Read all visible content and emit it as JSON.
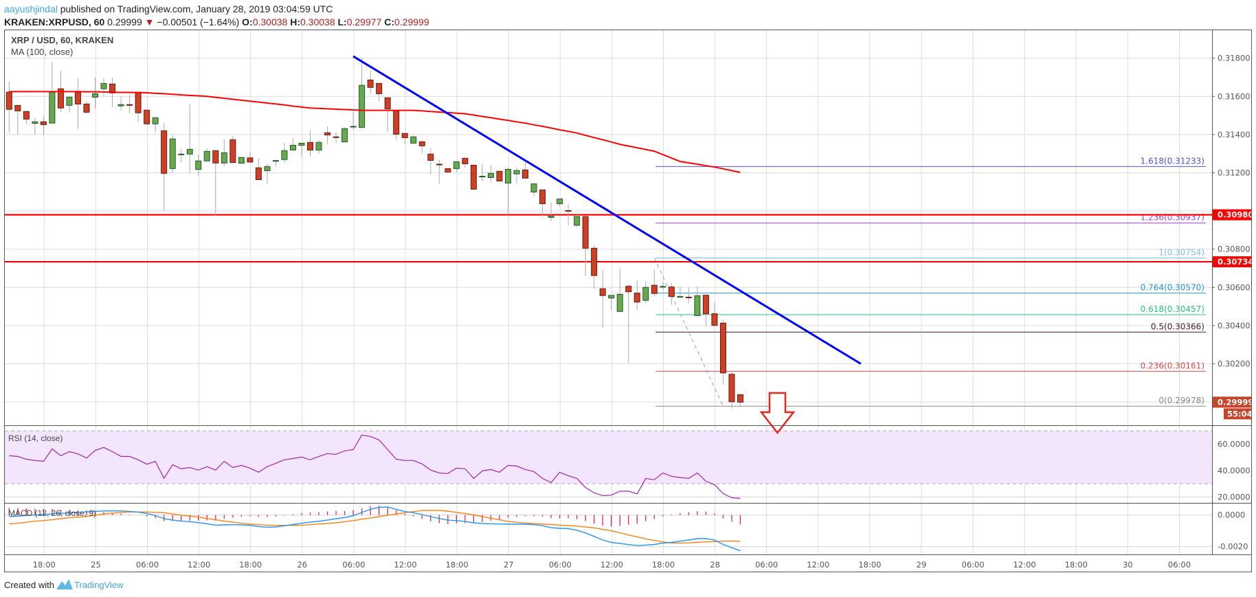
{
  "header": {
    "author": "aayushjindal",
    "published": " published on TradingView.com, January 28, 2019 03:04:59 UTC",
    "symbol_interval": "KRAKEN:XRPUSD, 60",
    "last": " 0.29999 ",
    "direction_icon": "triangle-down-icon",
    "change": " −0.00501 (−1.64%) ",
    "o_label": "O:",
    "o": "0.30038",
    "h_label": " H:",
    "h": "0.30038",
    "l_label": " L:",
    "l": "0.29977",
    "c_label": " C:",
    "c": "0.29999"
  },
  "legend": {
    "title": "XRP / USD, 60, KRAKEN",
    "ma_label": "MA (100, close)",
    "rsi_label": "RSI (14, close)",
    "macd_label": "MACD (12, 26, close, 9)"
  },
  "colors": {
    "up": "#6aa84f",
    "up_border": "#1f5a2a",
    "down": "#cc4125",
    "down_border": "#6a1b10",
    "wick": "#aaaaaa",
    "ma": "#ff0000",
    "trendline": "#0000ff",
    "resistance": "#ff0000",
    "rsi": "#9c27b0",
    "rsi_band": "#f3e5fc",
    "macd": "#2196f3",
    "signal": "#ff7f0e",
    "histogram": "#e91e63",
    "last_tag": "#c8432a",
    "author": "#3ea6dc",
    "negative": "#b71c1c"
  },
  "price_axis": {
    "labels": [
      "0.31800",
      "0.31600",
      "0.31400",
      "0.31200",
      "0.30800",
      "0.30600",
      "0.30400",
      "0.30200"
    ],
    "gridlines": [
      0.318,
      0.316,
      0.314,
      0.312,
      0.31,
      0.308,
      0.306,
      0.304,
      0.302,
      0.3
    ],
    "tags": [
      {
        "label": "0.30980",
        "value": 0.3098
      },
      {
        "label": "0.30734",
        "value": 0.30734
      },
      {
        "label": "0.29999",
        "value": 0.29999
      }
    ],
    "countdown": "55:04"
  },
  "rsi_axis": {
    "labels": [
      "60.0000",
      "40.0000",
      "20.0000"
    ],
    "values": [
      60,
      40,
      20
    ],
    "band": [
      30,
      70
    ]
  },
  "macd_axis": {
    "labels": [
      "0.0000",
      "-0.0020"
    ],
    "values": [
      0,
      -0.002
    ]
  },
  "annotations": {
    "resistance_lines": [
      0.3098,
      0.30734
    ],
    "trendline": {
      "from": [
        40,
        0.3181
      ],
      "to": [
        99,
        0.302
      ]
    },
    "fib_start_candle": 75,
    "fib_swing": {
      "from": [
        75,
        0.30754
      ],
      "to": [
        83,
        0.29978
      ]
    },
    "fib_levels": [
      {
        "label": "1.618(0.31233)",
        "value": 0.31233,
        "color": "#5050d8"
      },
      {
        "label": "1.236(0.30937)",
        "value": 0.30937,
        "color": "#a63ee0"
      },
      {
        "label": "1(0.30754)",
        "value": 0.30754,
        "color": "#7fbfe3"
      },
      {
        "label": "0.764(0.30570)",
        "value": 0.3057,
        "color": "#2196d8"
      },
      {
        "label": "0.618(0.30457)",
        "value": 0.30457,
        "color": "#26c281"
      },
      {
        "label": "0.5(0.30366)",
        "value": 0.30366,
        "color": "#4a1830"
      },
      {
        "label": "0.236(0.30161)",
        "value": 0.30161,
        "color": "#e04848"
      },
      {
        "label": "0(0.29978)",
        "value": 0.29978,
        "color": "#888888"
      }
    ],
    "arrow_icon": "down-arrow-icon"
  },
  "footer": {
    "created_with": "Created with",
    "brand": "TradingView"
  },
  "chart_data": {
    "type": "candlestick",
    "title": "XRP / USD, 60, KRAKEN",
    "x_tick_labels": [
      "18:00",
      "25",
      "06:00",
      "12:00",
      "18:00",
      "26",
      "06:00",
      "12:00",
      "18:00",
      "27",
      "06:00",
      "12:00",
      "18:00",
      "28",
      "06:00",
      "12:00",
      "18:00",
      "29",
      "06:00",
      "12:00",
      "18:00",
      "30",
      "06:00"
    ],
    "ylim": [
      0.2985,
      0.3194
    ],
    "grid": true,
    "candles_ohlc": [
      [
        0.31622,
        0.31677,
        0.3141,
        0.31532
      ],
      [
        0.31553,
        0.31553,
        0.314,
        0.31524
      ],
      [
        0.31521,
        0.31521,
        0.31455,
        0.31481
      ],
      [
        0.31459,
        0.3149,
        0.314,
        0.31467
      ],
      [
        0.31467,
        0.315,
        0.314,
        0.31452
      ],
      [
        0.3146,
        0.31778,
        0.3146,
        0.31622
      ],
      [
        0.3164,
        0.31734,
        0.3152,
        0.31539
      ],
      [
        0.31553,
        0.316,
        0.31514,
        0.31596
      ],
      [
        0.31622,
        0.31695,
        0.3143,
        0.3156
      ],
      [
        0.3156,
        0.31575,
        0.31509,
        0.31517
      ],
      [
        0.31596,
        0.31698,
        0.31538,
        0.31614
      ],
      [
        0.3164,
        0.31695,
        0.31601,
        0.31668
      ],
      [
        0.31665,
        0.31698,
        0.31545,
        0.31618
      ],
      [
        0.3155,
        0.31599,
        0.31527,
        0.31557
      ],
      [
        0.31557,
        0.31608,
        0.31512,
        0.31553
      ],
      [
        0.31622,
        0.31622,
        0.31466,
        0.31514
      ],
      [
        0.31528,
        0.31528,
        0.31456,
        0.31456
      ],
      [
        0.31456,
        0.31492,
        0.31412,
        0.31488
      ],
      [
        0.3142,
        0.3146,
        0.31001,
        0.31197
      ],
      [
        0.31222,
        0.31398,
        0.312,
        0.31377
      ],
      [
        0.31297,
        0.31324,
        0.31253,
        0.31298
      ],
      [
        0.31298,
        0.3156,
        0.31197,
        0.31323
      ],
      [
        0.31218,
        0.31294,
        0.31185,
        0.31262
      ],
      [
        0.31262,
        0.31326,
        0.31262,
        0.31312
      ],
      [
        0.31316,
        0.31316,
        0.30974,
        0.31251
      ],
      [
        0.31251,
        0.31377,
        0.31236,
        0.31305
      ],
      [
        0.31373,
        0.31391,
        0.31251,
        0.31254
      ],
      [
        0.3125,
        0.31283,
        0.3125,
        0.3128
      ],
      [
        0.31278,
        0.31308,
        0.31254,
        0.31256
      ],
      [
        0.31226,
        0.31274,
        0.31164,
        0.31164
      ],
      [
        0.31211,
        0.31247,
        0.31145,
        0.31233
      ],
      [
        0.31262,
        0.31269,
        0.31232,
        0.31264
      ],
      [
        0.31269,
        0.31358,
        0.31253,
        0.31316
      ],
      [
        0.31319,
        0.31385,
        0.31316,
        0.31344
      ],
      [
        0.31344,
        0.31355,
        0.31282,
        0.31355
      ],
      [
        0.31359,
        0.31421,
        0.31287,
        0.31319
      ],
      [
        0.31319,
        0.3137,
        0.313,
        0.31359
      ],
      [
        0.3141,
        0.31443,
        0.31348,
        0.31398
      ],
      [
        0.31388,
        0.3141,
        0.31355,
        0.31387
      ],
      [
        0.31362,
        0.31438,
        0.31362,
        0.31431
      ],
      [
        0.31441,
        0.31521,
        0.31427,
        0.31443
      ],
      [
        0.31438,
        0.31802,
        0.31431,
        0.31658
      ],
      [
        0.31686,
        0.31737,
        0.31614,
        0.31647
      ],
      [
        0.31668,
        0.31668,
        0.31575,
        0.31614
      ],
      [
        0.31593,
        0.31593,
        0.31413,
        0.31535
      ],
      [
        0.31524,
        0.31524,
        0.31373,
        0.31402
      ],
      [
        0.31406,
        0.31406,
        0.31352,
        0.31384
      ],
      [
        0.31355,
        0.31396,
        0.31355,
        0.31388
      ],
      [
        0.31362,
        0.3137,
        0.31301,
        0.31341
      ],
      [
        0.31298,
        0.31329,
        0.3119,
        0.31265
      ],
      [
        0.31245,
        0.31267,
        0.31143,
        0.31244
      ],
      [
        0.31222,
        0.31222,
        0.31204,
        0.31204
      ],
      [
        0.31222,
        0.31258,
        0.31204,
        0.31258
      ],
      [
        0.31276,
        0.3128,
        0.31227,
        0.31247
      ],
      [
        0.3124,
        0.3124,
        0.31114,
        0.31114
      ],
      [
        0.3118,
        0.31247,
        0.31154,
        0.31182
      ],
      [
        0.31175,
        0.3124,
        0.31149,
        0.31197
      ],
      [
        0.31208,
        0.31208,
        0.31154,
        0.31157
      ],
      [
        0.31146,
        0.31229,
        0.30971,
        0.31218
      ],
      [
        0.31194,
        0.31229,
        0.31146,
        0.31212
      ],
      [
        0.31215,
        0.31253,
        0.31172,
        0.31172
      ],
      [
        0.31099,
        0.31142,
        0.31078,
        0.31142
      ],
      [
        0.3111,
        0.3111,
        0.3097,
        0.31038
      ],
      [
        0.30966,
        0.31045,
        0.30948,
        0.30973
      ],
      [
        0.31038,
        0.31063,
        0.31024,
        0.31063
      ],
      [
        0.31002,
        0.31038,
        0.30926,
        0.31001
      ],
      [
        0.30925,
        0.30989,
        0.30918,
        0.30971
      ],
      [
        0.30971,
        0.30971,
        0.30659,
        0.30805
      ],
      [
        0.30805,
        0.30823,
        0.30593,
        0.30662
      ],
      [
        0.30593,
        0.30694,
        0.3039,
        0.30557
      ],
      [
        0.30544,
        0.30558,
        0.30483,
        0.30558
      ],
      [
        0.30474,
        0.307,
        0.30474,
        0.30564
      ],
      [
        0.30606,
        0.30617,
        0.30205,
        0.30577
      ],
      [
        0.3057,
        0.30635,
        0.30483,
        0.30523
      ],
      [
        0.30532,
        0.30632,
        0.30517,
        0.306
      ],
      [
        0.30611,
        0.30694,
        0.3055,
        0.30568
      ],
      [
        0.30603,
        0.30628,
        0.30586,
        0.30605
      ],
      [
        0.30602,
        0.30624,
        0.30509,
        0.30552
      ],
      [
        0.3055,
        0.30604,
        0.30548,
        0.30552
      ],
      [
        0.30549,
        0.306,
        0.30517,
        0.30548
      ],
      [
        0.30452,
        0.30603,
        0.30452,
        0.30556
      ],
      [
        0.30559,
        0.30559,
        0.30395,
        0.30462
      ],
      [
        0.30462,
        0.30523,
        0.30394,
        0.30401
      ],
      [
        0.30413,
        0.30431,
        0.30091,
        0.30152
      ],
      [
        0.30145,
        0.30163,
        0.29966,
        0.30001
      ],
      [
        0.30038,
        0.30038,
        0.29977,
        0.29999
      ]
    ],
    "ma100": [
      0.31625,
      0.31625,
      0.31625,
      0.31625,
      0.31625,
      0.31625,
      0.31625,
      0.31625,
      0.31625,
      0.31624,
      0.31624,
      0.31623,
      0.31622,
      0.31621,
      0.31621,
      0.3162,
      0.31619,
      0.31616,
      0.31614,
      0.31611,
      0.31608,
      0.31605,
      0.31603,
      0.316,
      0.31595,
      0.3159,
      0.31585,
      0.3158,
      0.31575,
      0.3157,
      0.31565,
      0.3156,
      0.31555,
      0.31549,
      0.31544,
      0.31539,
      0.31537,
      0.31535,
      0.31533,
      0.31531,
      0.31529,
      0.31527,
      0.31527,
      0.31527,
      0.31527,
      0.31527,
      0.31527,
      0.31527,
      0.31524,
      0.31521,
      0.31518,
      0.31515,
      0.31512,
      0.31509,
      0.31502,
      0.31495,
      0.31488,
      0.31481,
      0.31474,
      0.31467,
      0.3146,
      0.31451,
      0.31443,
      0.31434,
      0.31425,
      0.31417,
      0.31408,
      0.31396,
      0.31384,
      0.31373,
      0.31361,
      0.31349,
      0.3134,
      0.31331,
      0.31322,
      0.31313,
      0.31295,
      0.31277,
      0.31259,
      0.31252,
      0.31245,
      0.31237,
      0.3123,
      0.31221,
      0.31211,
      0.31202
    ],
    "rsi": [
      51.2,
      50.7,
      48.6,
      47.6,
      47.0,
      56.4,
      51.2,
      54.3,
      52.6,
      49.5,
      55.2,
      57.5,
      54.3,
      50.7,
      50.7,
      48.1,
      44.8,
      47.0,
      34.1,
      44.4,
      41.3,
      42.3,
      40.3,
      42.9,
      40.3,
      47.0,
      42.3,
      43.9,
      41.8,
      38.7,
      42.9,
      45.5,
      48.1,
      49.1,
      50.2,
      48.1,
      50.7,
      52.8,
      52.3,
      54.9,
      55.9,
      66.9,
      65.8,
      63.2,
      55.9,
      48.6,
      47.6,
      47.6,
      45.0,
      40.3,
      38.2,
      37.7,
      41.8,
      41.3,
      34.0,
      39.7,
      40.8,
      38.7,
      43.9,
      43.4,
      40.8,
      39.2,
      34.0,
      30.9,
      38.7,
      36.1,
      34.0,
      27.2,
      23.0,
      21.0,
      21.3,
      24.3,
      24.3,
      22.3,
      34.0,
      33.0,
      38.2,
      35.6,
      34.7,
      34.0,
      38.2,
      31.9,
      29.3,
      22.5,
      19.4,
      18.9
    ],
    "macd": [
      -0.0001,
      -7e-05,
      -3e-05,
      0,
      4e-05,
      7e-05,
      0.0001,
      0.00013,
      0.00017,
      0.0002,
      0.00023,
      0.00026,
      0.00026,
      0.00026,
      0.00023,
      0.00019,
      0.0001,
      -3e-05,
      -0.00023,
      -0.00032,
      -0.00038,
      -0.00042,
      -0.00048,
      -0.00055,
      -0.00064,
      -0.00062,
      -0.00061,
      -0.00062,
      -0.00065,
      -0.00073,
      -0.00077,
      -0.00075,
      -0.00068,
      -0.0006,
      -0.00052,
      -0.00045,
      -0.00039,
      -0.00032,
      -0.00023,
      -0.00016,
      -4e-05,
      0.00016,
      0.00036,
      0.00049,
      0.00051,
      0.00036,
      0.00022,
      0.00015,
      3e-05,
      -0.0001,
      -0.00022,
      -0.00032,
      -0.00035,
      -0.00041,
      -0.00049,
      -0.00054,
      -0.00055,
      -0.00057,
      -0.00058,
      -0.00058,
      -0.00058,
      -0.00061,
      -0.00067,
      -0.0008,
      -0.00084,
      -0.00086,
      -0.00096,
      -0.00113,
      -0.00135,
      -0.00158,
      -0.00173,
      -0.0018,
      -0.00187,
      -0.00193,
      -0.0019,
      -0.00186,
      -0.00178,
      -0.00173,
      -0.00165,
      -0.00158,
      -0.00149,
      -0.00149,
      -0.00158,
      -0.00186,
      -0.00206,
      -0.00226
    ],
    "signal": [
      -0.00055,
      -0.00052,
      -0.00045,
      -0.00039,
      -0.00035,
      -0.00029,
      -0.00023,
      -0.00017,
      -0.00013,
      -9e-05,
      -1e-05,
      6e-05,
      0.00012,
      0.00017,
      0.00019,
      0.00019,
      0.00019,
      0.00017,
      0.00015,
      7e-05,
      -1e-05,
      -6e-05,
      -0.00013,
      -0.00022,
      -0.00029,
      -0.00038,
      -0.00045,
      -0.00052,
      -0.00058,
      -0.00061,
      -0.00064,
      -0.00065,
      -0.00065,
      -0.00065,
      -0.00064,
      -0.00061,
      -0.00057,
      -0.00054,
      -0.00049,
      -0.00042,
      -0.00035,
      -0.00026,
      -0.00019,
      -0.0001,
      -1e-05,
      6e-05,
      0.00015,
      0.00022,
      0.00028,
      0.0003,
      0.00029,
      0.00025,
      0.00017,
      0.0001,
      1e-05,
      -9e-05,
      -0.0002,
      -0.0003,
      -0.00041,
      -0.00046,
      -0.00051,
      -0.00054,
      -0.00057,
      -0.0006,
      -0.00064,
      -0.00067,
      -0.0007,
      -0.00075,
      -0.00081,
      -0.00091,
      -0.001,
      -0.00112,
      -0.00126,
      -0.00138,
      -0.00151,
      -0.00161,
      -0.0017,
      -0.00177,
      -0.00177,
      -0.00176,
      -0.00173,
      -0.0017,
      -0.00168,
      -0.00165,
      -0.00165,
      -0.00167
    ]
  }
}
